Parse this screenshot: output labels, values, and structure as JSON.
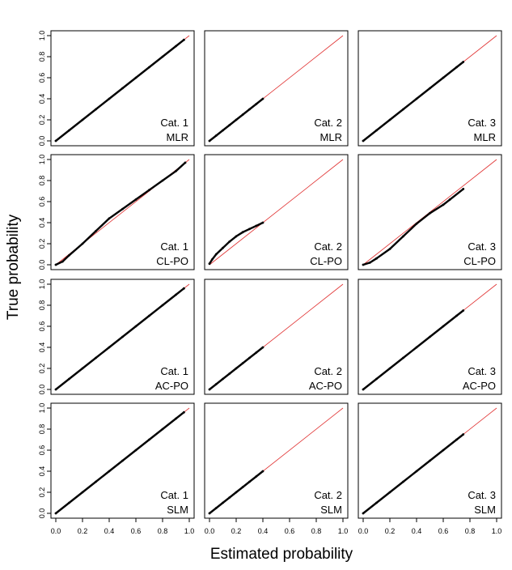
{
  "chart_data": {
    "type": "scatter",
    "xlabel": "Estimated probability",
    "ylabel": "True probability",
    "xlim": [
      0,
      1
    ],
    "ylim": [
      0,
      1
    ],
    "ticks": [
      "0.0",
      "0.2",
      "0.4",
      "0.6",
      "0.8",
      "1.0"
    ],
    "tick_values": [
      0,
      0.2,
      0.4,
      0.6,
      0.8,
      1.0
    ],
    "reference_line": {
      "from": [
        0,
        0
      ],
      "to": [
        1,
        1
      ],
      "color": "#e03030"
    },
    "point_color": "#000000",
    "grid": false,
    "layout": {
      "rows": 4,
      "cols": 3
    },
    "panels": [
      {
        "category": "Cat. 1",
        "model": "MLR",
        "points": [
          [
            0,
            0
          ],
          [
            0.1,
            0.1
          ],
          [
            0.2,
            0.2
          ],
          [
            0.3,
            0.3
          ],
          [
            0.4,
            0.4
          ],
          [
            0.5,
            0.5
          ],
          [
            0.6,
            0.6
          ],
          [
            0.7,
            0.7
          ],
          [
            0.8,
            0.8
          ],
          [
            0.9,
            0.9
          ],
          [
            0.96,
            0.96
          ]
        ]
      },
      {
        "category": "Cat. 2",
        "model": "MLR",
        "points": [
          [
            0,
            0
          ],
          [
            0.05,
            0.05
          ],
          [
            0.1,
            0.1
          ],
          [
            0.15,
            0.15
          ],
          [
            0.2,
            0.2
          ],
          [
            0.25,
            0.25
          ],
          [
            0.3,
            0.3
          ],
          [
            0.35,
            0.35
          ],
          [
            0.4,
            0.4
          ]
        ]
      },
      {
        "category": "Cat. 3",
        "model": "MLR",
        "points": [
          [
            0,
            0
          ],
          [
            0.1,
            0.1
          ],
          [
            0.2,
            0.2
          ],
          [
            0.3,
            0.3
          ],
          [
            0.4,
            0.4
          ],
          [
            0.5,
            0.5
          ],
          [
            0.6,
            0.6
          ],
          [
            0.7,
            0.7
          ],
          [
            0.75,
            0.75
          ]
        ]
      },
      {
        "category": "Cat. 1",
        "model": "CL-PO",
        "points": [
          [
            0,
            0
          ],
          [
            0.05,
            0.03
          ],
          [
            0.1,
            0.09
          ],
          [
            0.2,
            0.2
          ],
          [
            0.3,
            0.32
          ],
          [
            0.4,
            0.44
          ],
          [
            0.5,
            0.53
          ],
          [
            0.6,
            0.62
          ],
          [
            0.7,
            0.71
          ],
          [
            0.8,
            0.8
          ],
          [
            0.9,
            0.89
          ],
          [
            0.97,
            0.97
          ]
        ]
      },
      {
        "category": "Cat. 2",
        "model": "CL-PO",
        "points": [
          [
            0,
            0.01
          ],
          [
            0.02,
            0.05
          ],
          [
            0.05,
            0.1
          ],
          [
            0.1,
            0.16
          ],
          [
            0.15,
            0.22
          ],
          [
            0.2,
            0.27
          ],
          [
            0.25,
            0.31
          ],
          [
            0.3,
            0.34
          ],
          [
            0.35,
            0.37
          ],
          [
            0.4,
            0.4
          ]
        ]
      },
      {
        "category": "Cat. 3",
        "model": "CL-PO",
        "points": [
          [
            0,
            0
          ],
          [
            0.05,
            0.02
          ],
          [
            0.1,
            0.06
          ],
          [
            0.2,
            0.15
          ],
          [
            0.3,
            0.27
          ],
          [
            0.4,
            0.39
          ],
          [
            0.5,
            0.49
          ],
          [
            0.6,
            0.57
          ],
          [
            0.65,
            0.62
          ],
          [
            0.75,
            0.72
          ]
        ]
      },
      {
        "category": "Cat. 1",
        "model": "AC-PO",
        "points": [
          [
            0,
            0
          ],
          [
            0.1,
            0.1
          ],
          [
            0.2,
            0.2
          ],
          [
            0.3,
            0.3
          ],
          [
            0.4,
            0.4
          ],
          [
            0.5,
            0.5
          ],
          [
            0.6,
            0.6
          ],
          [
            0.7,
            0.7
          ],
          [
            0.8,
            0.8
          ],
          [
            0.9,
            0.9
          ],
          [
            0.96,
            0.96
          ]
        ]
      },
      {
        "category": "Cat. 2",
        "model": "AC-PO",
        "points": [
          [
            0,
            0
          ],
          [
            0.05,
            0.05
          ],
          [
            0.1,
            0.1
          ],
          [
            0.15,
            0.15
          ],
          [
            0.2,
            0.2
          ],
          [
            0.25,
            0.25
          ],
          [
            0.3,
            0.3
          ],
          [
            0.35,
            0.35
          ],
          [
            0.4,
            0.4
          ]
        ]
      },
      {
        "category": "Cat. 3",
        "model": "AC-PO",
        "points": [
          [
            0,
            0
          ],
          [
            0.1,
            0.1
          ],
          [
            0.2,
            0.2
          ],
          [
            0.3,
            0.3
          ],
          [
            0.4,
            0.4
          ],
          [
            0.5,
            0.5
          ],
          [
            0.6,
            0.6
          ],
          [
            0.7,
            0.7
          ],
          [
            0.75,
            0.75
          ]
        ]
      },
      {
        "category": "Cat. 1",
        "model": "SLM",
        "points": [
          [
            0,
            0
          ],
          [
            0.1,
            0.1
          ],
          [
            0.2,
            0.2
          ],
          [
            0.3,
            0.3
          ],
          [
            0.4,
            0.4
          ],
          [
            0.5,
            0.5
          ],
          [
            0.6,
            0.6
          ],
          [
            0.7,
            0.7
          ],
          [
            0.8,
            0.8
          ],
          [
            0.9,
            0.9
          ],
          [
            0.96,
            0.96
          ]
        ]
      },
      {
        "category": "Cat. 2",
        "model": "SLM",
        "points": [
          [
            0,
            0
          ],
          [
            0.05,
            0.05
          ],
          [
            0.1,
            0.1
          ],
          [
            0.15,
            0.15
          ],
          [
            0.2,
            0.2
          ],
          [
            0.25,
            0.25
          ],
          [
            0.3,
            0.3
          ],
          [
            0.35,
            0.35
          ],
          [
            0.4,
            0.4
          ]
        ]
      },
      {
        "category": "Cat. 3",
        "model": "SLM",
        "points": [
          [
            0,
            0
          ],
          [
            0.1,
            0.1
          ],
          [
            0.2,
            0.2
          ],
          [
            0.3,
            0.3
          ],
          [
            0.4,
            0.4
          ],
          [
            0.5,
            0.5
          ],
          [
            0.6,
            0.6
          ],
          [
            0.7,
            0.7
          ],
          [
            0.75,
            0.75
          ]
        ]
      }
    ]
  }
}
